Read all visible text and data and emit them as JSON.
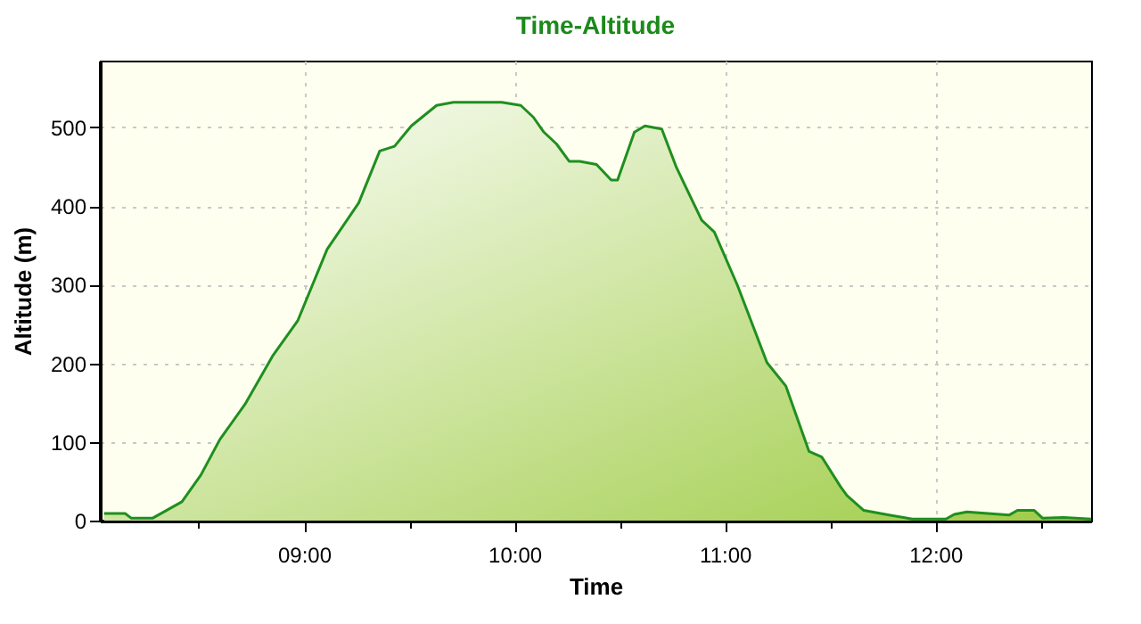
{
  "chart_data": {
    "type": "area",
    "title": "Time-Altitude",
    "xlabel": "Time",
    "ylabel": "Altitude (m)",
    "x": [
      8.05,
      8.15,
      8.18,
      8.28,
      8.42,
      8.51,
      8.6,
      8.72,
      8.85,
      8.97,
      9.11,
      9.26,
      9.36,
      9.43,
      9.51,
      9.63,
      9.71,
      9.94,
      10.03,
      10.09,
      10.14,
      10.2,
      10.26,
      10.31,
      10.39,
      10.46,
      10.49,
      10.57,
      10.62,
      10.7,
      10.77,
      10.89,
      10.95,
      11.06,
      11.2,
      11.29,
      11.4,
      11.46,
      11.55,
      11.58,
      11.66,
      11.78,
      11.89,
      12.05,
      12.09,
      12.15,
      12.35,
      12.39,
      12.47,
      12.51,
      12.61,
      12.74
    ],
    "series": [
      {
        "color": "#1f8f1f",
        "values": [
          9,
          9,
          3,
          3,
          24,
          58,
          103,
          148,
          209,
          254,
          345,
          404,
          470,
          476,
          502,
          528,
          532,
          532,
          528,
          513,
          494,
          479,
          457,
          457,
          453,
          433,
          433,
          494,
          502,
          498,
          449,
          382,
          367,
          299,
          201,
          171,
          88,
          81,
          43,
          32,
          13,
          7,
          2,
          2,
          8,
          11,
          7,
          13,
          13,
          3,
          4,
          2
        ]
      }
    ],
    "xlim": [
      8.03,
      12.74
    ],
    "xticks": [
      {
        "value": 8.5,
        "label": null
      },
      {
        "value": 9,
        "label": "09:00"
      },
      {
        "value": 9.5,
        "label": null
      },
      {
        "value": 10,
        "label": "10:00"
      },
      {
        "value": 10.5,
        "label": null
      },
      {
        "value": 11,
        "label": "11:00"
      },
      {
        "value": 11.5,
        "label": null
      },
      {
        "value": 12,
        "label": "12:00"
      },
      {
        "value": 12.5,
        "label": null
      }
    ],
    "ylim": [
      0,
      585
    ],
    "yticks": [
      0,
      100,
      200,
      300,
      400,
      500
    ],
    "grid": true,
    "marker": "none",
    "line_style": "solid"
  }
}
